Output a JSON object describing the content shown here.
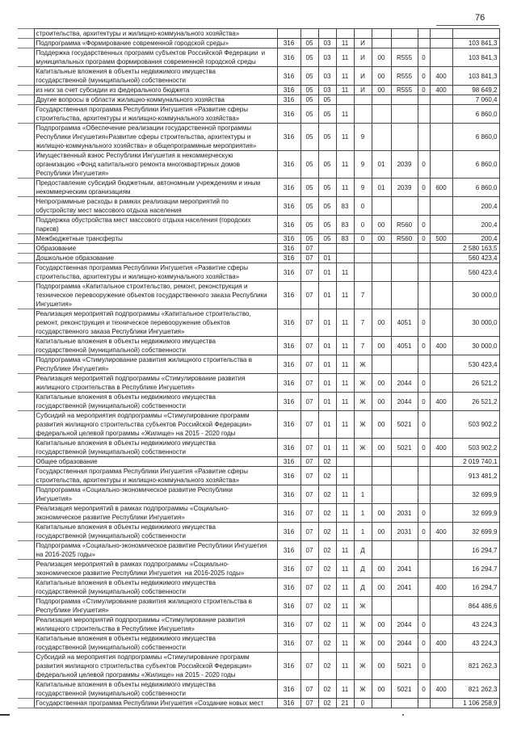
{
  "page_number": "76",
  "rows": [
    {
      "name": "строительства, архитектуры и жилищно-коммунального хозяйства»",
      "codes": [
        "",
        "",
        "",
        "",
        "",
        "",
        "",
        "",
        "",
        ""
      ]
    },
    {
      "name": "Подпрограмма «Формирование современной городской среды»",
      "codes": [
        "316",
        "05",
        "03",
        "11",
        "И",
        "",
        "",
        "",
        "",
        "103 841,3"
      ]
    },
    {
      "name": "Поддержка государственных программ субъектов Российской Федерации  и\nмуниципальных программ формирования современной городской среды",
      "codes": [
        "316",
        "05",
        "03",
        "11",
        "И",
        "00",
        "R555",
        "0",
        "",
        "103 841,3"
      ]
    },
    {
      "name": "Капитальные вложения в объекты недвижимого имущества\nгосударственной (муниципальной) собственности",
      "codes": [
        "316",
        "05",
        "03",
        "11",
        "И",
        "00",
        "R555",
        "0",
        "400",
        "103 841,3"
      ]
    },
    {
      "name": "из них за счет субсидии из федерального бюджета",
      "codes": [
        "316",
        "05",
        "03",
        "11",
        "И",
        "00",
        "R555",
        "0",
        "400",
        "98 649,2"
      ]
    },
    {
      "name": "Другие вопросы в области жилищно-коммунального хозяйства",
      "codes": [
        "316",
        "05",
        "05",
        "",
        "",
        "",
        "",
        "",
        "",
        "7 060,4"
      ]
    },
    {
      "name": "Государственная программа Республики Ингушетия «Развитие сферы\nстроительства, архитектуры и жилищно-коммунального хозяйства»",
      "codes": [
        "316",
        "05",
        "05",
        "11",
        "",
        "",
        "",
        "",
        "",
        "6 860,0"
      ]
    },
    {
      "name": "Подпрограмма «Обеспечение реализации государственной программы\nРеспублики Ингушетия«Развитие сферы строительства, архитектуры и\nжилищно-коммунального хозяйства» и общепрограммные мероприятия»",
      "codes": [
        "316",
        "05",
        "05",
        "11",
        "9",
        "",
        "",
        "",
        "",
        "6 860,0"
      ]
    },
    {
      "name": "Имущественный взнос Республики Ингушетия в некоммерческую\nорганизацию «Фонд капитального ремонта многоквартирных домов\nРеспублики Ингушетия»",
      "codes": [
        "316",
        "05",
        "05",
        "11",
        "9",
        "01",
        "2039",
        "0",
        "",
        "6 860,0"
      ]
    },
    {
      "name": "Предоставление субсидий бюджетным, автономным учреждениям и иным\nнекоммерческим организациям",
      "codes": [
        "316",
        "05",
        "05",
        "11",
        "9",
        "01",
        "2039",
        "0",
        "600",
        "6 860,0"
      ]
    },
    {
      "name": "Непрограммные расходы в рамках реализации мероприятий по\nобустройству мест массового отдыха населения",
      "codes": [
        "316",
        "05",
        "05",
        "83",
        "0",
        "",
        "",
        "",
        "",
        "200,4"
      ]
    },
    {
      "name": "Поддержка обустройства мест массового отдыха населения (городских\nпарков)",
      "codes": [
        "316",
        "05",
        "05",
        "83",
        "0",
        "00",
        "R560",
        "0",
        "",
        "200,4"
      ]
    },
    {
      "name": "Межбюджетные трансферты",
      "codes": [
        "316",
        "05",
        "05",
        "83",
        "0",
        "00",
        "R560",
        "0",
        "500",
        "200,4"
      ]
    },
    {
      "name": "Образование",
      "codes": [
        "316",
        "07",
        "",
        "",
        "",
        "",
        "",
        "",
        "",
        "2 580 163,5"
      ]
    },
    {
      "name": "Дошкольное образование",
      "codes": [
        "316",
        "07",
        "01",
        "",
        "",
        "",
        "",
        "",
        "",
        "560 423,4"
      ]
    },
    {
      "name": "Государственная программа Республики Ингушетия «Развитие сферы\nстроительства, архитектуры и жилищно-коммунального хозяйства»",
      "codes": [
        "316",
        "07",
        "01",
        "11",
        "",
        "",
        "",
        "",
        "",
        "560 423,4"
      ]
    },
    {
      "name": "Подпрограмма «Капитальное строительство, ремонт, реконструкция и\nтехническое перевооружение объектов государственного заказа Республики\nИнгушетия»",
      "codes": [
        "316",
        "07",
        "01",
        "11",
        "7",
        "",
        "",
        "",
        "",
        "30 000,0"
      ]
    },
    {
      "name": "Реализация мероприятий подпрограммы «Капитальное строительство,\nремонт, реконструкция и техническое перевооружение объектов\nгосударственного заказа Республики Ингушетия»",
      "codes": [
        "316",
        "07",
        "01",
        "11",
        "7",
        "00",
        "4051",
        "0",
        "",
        "30 000,0"
      ]
    },
    {
      "name": "Капитальные вложения в объекты недвижимого имущества\nгосударственной (муниципальной) собственности",
      "codes": [
        "316",
        "07",
        "01",
        "11",
        "7",
        "00",
        "4051",
        "0",
        "400",
        "30 000,0"
      ]
    },
    {
      "name": "Подпрограмма «Стимулирование развития жилищного строительства в\nРеспублике Ингушетия»",
      "codes": [
        "316",
        "07",
        "01",
        "11",
        "Ж",
        "",
        "",
        "",
        "",
        "530 423,4"
      ]
    },
    {
      "name": "Реализация мероприятий подпрограммы «Стимулирование развития\nжилищного строительства в Республике Ингушетия»",
      "codes": [
        "316",
        "07",
        "01",
        "11",
        "Ж",
        "00",
        "2044",
        "0",
        "",
        "26 521,2"
      ]
    },
    {
      "name": "Капитальные вложения в объекты недвижимого имущества\nгосударственной (муниципальной) собственности",
      "codes": [
        "316",
        "07",
        "01",
        "11",
        "Ж",
        "00",
        "2044",
        "0",
        "400",
        "26 521,2"
      ]
    },
    {
      "name": "Субсидий на мероприятия подпрограммы «Стимулирование программ\nразвития жилищного строительства субъектов Российской Федерации»\nфедеральной целевой программы «Жилище» на 2015 - 2020 годы",
      "codes": [
        "316",
        "07",
        "01",
        "11",
        "Ж",
        "00",
        "5021",
        "0",
        "",
        "503 902,2"
      ]
    },
    {
      "name": "Капитальные вложения в объекты недвижимого имущества\nгосударственной (муниципальной) собственности",
      "codes": [
        "316",
        "07",
        "01",
        "11",
        "Ж",
        "00",
        "5021",
        "0",
        "400",
        "503 902,2"
      ]
    },
    {
      "name": "Общее образование",
      "codes": [
        "316",
        "07",
        "02",
        "",
        "",
        "",
        "",
        "",
        "",
        "2 019 740,1"
      ]
    },
    {
      "name": "Государственная программа Республики Ингушетия «Развитие сферы\nстроительства, архитектуры и жилищно-коммунального хозяйства»",
      "codes": [
        "316",
        "07",
        "02",
        "11",
        "",
        "",
        "",
        "",
        "",
        "913 481,2"
      ]
    },
    {
      "name": "Подпрограмма «Социально-экономическое развитие Республики\nИнгушетия»",
      "codes": [
        "316",
        "07",
        "02",
        "11",
        "1",
        "",
        "",
        "",
        "",
        "32 699,9"
      ]
    },
    {
      "name": "Реализация мероприятий в рамках подпрограммы «Социально-\nэкономическое развитие Республики Ингушетия»",
      "codes": [
        "316",
        "07",
        "02",
        "11",
        "1",
        "00",
        "2031",
        "0",
        "",
        "32 699,9"
      ]
    },
    {
      "name": "Капитальные вложения в объекты недвижимого имущества\nгосударственной (муниципальной) собственности",
      "codes": [
        "316",
        "07",
        "02",
        "11",
        "1",
        "00",
        "2031",
        "0",
        "400",
        "32 699,9"
      ]
    },
    {
      "name": "Подпрограмма «Социально-экономическое развитие Республики Ингушетия\nна 2016-2025 годы»",
      "codes": [
        "316",
        "07",
        "02",
        "11",
        "Д",
        "",
        "",
        "",
        "",
        "16 294,7"
      ]
    },
    {
      "name": "Реализация мероприятий в рамках подпрограммы «Социально-\nэкономическое развитие Республики Ингушетия  на 2016-2025 годы»",
      "codes": [
        "316",
        "07",
        "02",
        "11",
        "Д",
        "00",
        "2041",
        "",
        "",
        "16 294,7"
      ]
    },
    {
      "name": "Капитальные вложения в объекты недвижимого имущества\nгосударственной (муниципальной) собственности",
      "codes": [
        "316",
        "07",
        "02",
        "11",
        "Д",
        "00",
        "2041",
        "",
        "400",
        "16 294,7"
      ]
    },
    {
      "name": "Подпрограмма «Стимулирование развития жилищного строительства в\nРеспублике Ингушетия»",
      "codes": [
        "316",
        "07",
        "02",
        "11",
        "Ж",
        "",
        "",
        "",
        "",
        "864 486,6"
      ]
    },
    {
      "name": "Реализация мероприятий подпрограммы «Стимулирование развития\nжилищного строительства в Республике Ингушетия»",
      "codes": [
        "316",
        "07",
        "02",
        "11",
        "Ж",
        "00",
        "2044",
        "0",
        "",
        "43 224,3"
      ]
    },
    {
      "name": "Капитальные вложения в объекты недвижимого имущества\nгосударственной (муниципальной) собственности",
      "codes": [
        "316",
        "07",
        "02",
        "11",
        "Ж",
        "00",
        "2044",
        "0",
        "400",
        "43 224,3"
      ]
    },
    {
      "name": "Субсидий на мероприятия подпрограммы «Стимулирование программ\nразвития жилищного строительства субъектов Российской Федерации»\nфедеральной целевой программы «Жилище» на 2015 - 2020 годы",
      "codes": [
        "316",
        "07",
        "02",
        "11",
        "Ж",
        "00",
        "5021",
        "0",
        "",
        "821 262,3"
      ]
    },
    {
      "name": "Капитальные вложения в объекты недвижимого имущества\nгосударственной (муниципальной) собственности",
      "codes": [
        "316",
        "07",
        "02",
        "11",
        "Ж",
        "00",
        "5021",
        "0",
        "400",
        "821 262,3"
      ]
    },
    {
      "name": "Государственная программа Республики Ингушетия «Создание новых мест",
      "codes": [
        "316",
        "07",
        "02",
        "21",
        "0",
        "",
        "",
        "",
        "",
        "1 106 258,9"
      ]
    }
  ]
}
